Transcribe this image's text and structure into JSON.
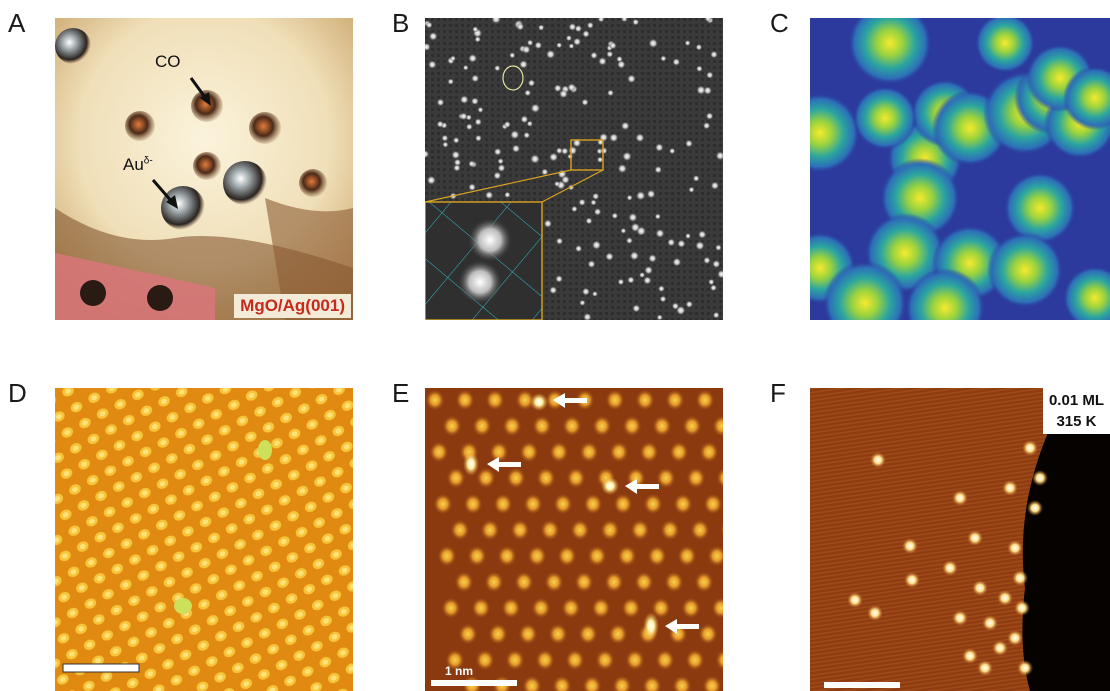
{
  "panels": {
    "A": {
      "label": "A",
      "annotations": {
        "co": "CO",
        "au": "Au",
        "au_sup": "δ-"
      },
      "substrate": "MgO/Ag(001)"
    },
    "B": {
      "label": "B"
    },
    "C": {
      "label": "C"
    },
    "D": {
      "label": "D"
    },
    "E": {
      "label": "E",
      "scale_bar": "1 nm"
    },
    "F": {
      "label": "F",
      "coverage": "0.01 ML",
      "temperature": "315 K"
    }
  },
  "colors": {
    "afm_background": "#f2e2bd",
    "hot_colormap_mid": "#c9742a",
    "viridis_bg": "#2b3a9c",
    "viridis_peak": "#f3e93a"
  }
}
